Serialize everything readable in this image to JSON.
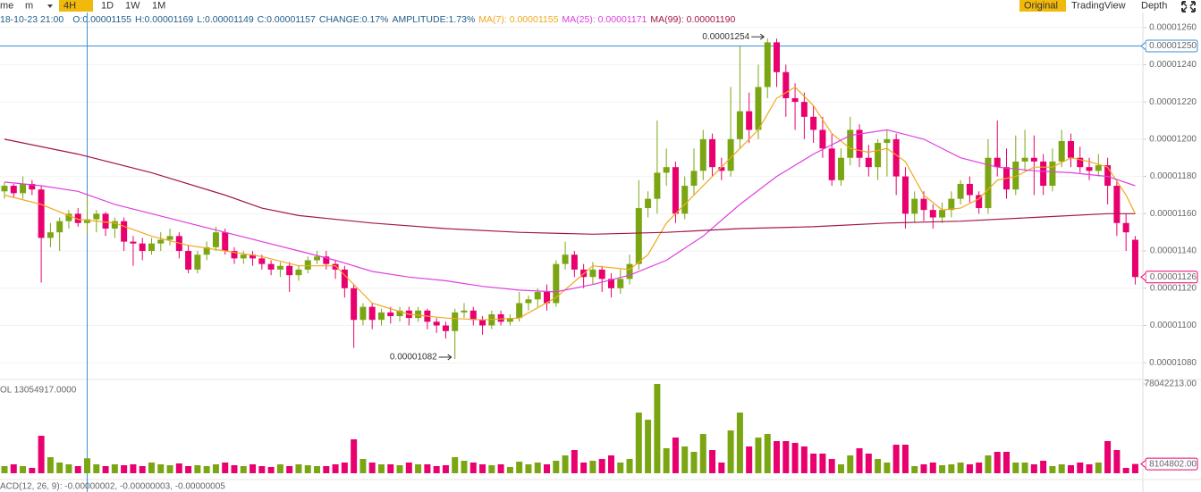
{
  "toolbar": {
    "intervals": [
      "me",
      "m",
      "4H",
      "1D",
      "1W",
      "1M"
    ],
    "active_interval": 2,
    "views": [
      "Original",
      "TradingView",
      "Depth"
    ],
    "active_view": 0
  },
  "chart_data": {
    "type": "candlestick",
    "info": {
      "date": "18-10-23 21:00",
      "fields": [
        "O:0.00001155",
        "H:0.00001169",
        "L:0.00001149",
        "C:0.00001157",
        "CHANGE:0.17%",
        "AMPLITUDE:1.73%"
      ]
    },
    "ylim": [
      1.071e-05,
      1.268e-05
    ],
    "yticks": [
      {
        "value": 1.08e-05,
        "label": "0.00001080"
      },
      {
        "value": 1.1e-05,
        "label": "0.00001100"
      },
      {
        "value": 1.12e-05,
        "label": "0.00001120"
      },
      {
        "value": 1.14e-05,
        "label": "0.00001140"
      },
      {
        "value": 1.16e-05,
        "label": "0.00001160"
      },
      {
        "value": 1.18e-05,
        "label": "0.00001180"
      },
      {
        "value": 1.2e-05,
        "label": "0.00001200"
      },
      {
        "value": 1.22e-05,
        "label": "0.00001220"
      },
      {
        "value": 1.24e-05,
        "label": "0.00001240"
      },
      {
        "value": 1.26e-05,
        "label": "0.00001260"
      }
    ],
    "grid": true,
    "up_color": "#7ba614",
    "down_color": "#e8006e",
    "candles": [
      [
        1.172e-05,
        1.177e-05,
        1.168e-05,
        1.175e-05
      ],
      [
        1.175e-05,
        1.176e-05,
        1.169e-05,
        1.171e-05
      ],
      [
        1.171e-05,
        1.18e-05,
        1.168e-05,
        1.176e-05
      ],
      [
        1.176e-05,
        1.178e-05,
        1.17e-05,
        1.173e-05
      ],
      [
        1.173e-05,
        1.175e-05,
        1.123e-05,
        1.147e-05
      ],
      [
        1.147e-05,
        1.155e-05,
        1.142e-05,
        1.15e-05
      ],
      [
        1.15e-05,
        1.158e-05,
        1.14e-05,
        1.156e-05
      ],
      [
        1.156e-05,
        1.162e-05,
        1.152e-05,
        1.16e-05
      ],
      [
        1.16e-05,
        1.163e-05,
        1.153e-05,
        1.155e-05
      ],
      [
        1.155e-05,
        1.169e-05,
        1.149e-05,
        1.157e-05
      ],
      [
        1.157e-05,
        1.162e-05,
        1.15e-05,
        1.16e-05
      ],
      [
        1.16e-05,
        1.161e-05,
        1.148e-05,
        1.152e-05
      ],
      [
        1.152e-05,
        1.158e-05,
        1.147e-05,
        1.156e-05
      ],
      [
        1.156e-05,
        1.158e-05,
        1.14e-05,
        1.145e-05
      ],
      [
        1.145e-05,
        1.148e-05,
        1.132e-05,
        1.144e-05
      ],
      [
        1.144e-05,
        1.147e-05,
        1.135e-05,
        1.14e-05
      ],
      [
        1.14e-05,
        1.147e-05,
        1.138e-05,
        1.144e-05
      ],
      [
        1.144e-05,
        1.15e-05,
        1.14e-05,
        1.146e-05
      ],
      [
        1.146e-05,
        1.152e-05,
        1.143e-05,
        1.148e-05
      ],
      [
        1.148e-05,
        1.15e-05,
        1.136e-05,
        1.14e-05
      ],
      [
        1.14e-05,
        1.143e-05,
        1.128e-05,
        1.13e-05
      ],
      [
        1.13e-05,
        1.14e-05,
        1.128e-05,
        1.138e-05
      ],
      [
        1.138e-05,
        1.145e-05,
        1.135e-05,
        1.142e-05
      ],
      [
        1.142e-05,
        1.153e-05,
        1.14e-05,
        1.15e-05
      ],
      [
        1.15e-05,
        1.152e-05,
        1.138e-05,
        1.14e-05
      ],
      [
        1.14e-05,
        1.142e-05,
        1.133e-05,
        1.136e-05
      ],
      [
        1.136e-05,
        1.14e-05,
        1.133e-05,
        1.138e-05
      ],
      [
        1.138e-05,
        1.14e-05,
        1.132e-05,
        1.136e-05
      ],
      [
        1.136e-05,
        1.138e-05,
        1.13e-05,
        1.133e-05
      ],
      [
        1.133e-05,
        1.135e-05,
        1.127e-05,
        1.13e-05
      ],
      [
        1.13e-05,
        1.134e-05,
        1.126e-05,
        1.132e-05
      ],
      [
        1.132e-05,
        1.134e-05,
        1.118e-05,
        1.127e-05
      ],
      [
        1.127e-05,
        1.132e-05,
        1.124e-05,
        1.13e-05
      ],
      [
        1.13e-05,
        1.137e-05,
        1.128e-05,
        1.135e-05
      ],
      [
        1.135e-05,
        1.14e-05,
        1.133e-05,
        1.137e-05
      ],
      [
        1.137e-05,
        1.14e-05,
        1.13e-05,
        1.133e-05
      ],
      [
        1.133e-05,
        1.135e-05,
        1.125e-05,
        1.13e-05
      ],
      [
        1.13e-05,
        1.132e-05,
        1.115e-05,
        1.12e-05
      ],
      [
        1.12e-05,
        1.122e-05,
        1.088e-05,
        1.103e-05
      ],
      [
        1.103e-05,
        1.112e-05,
        1.1e-05,
        1.11e-05
      ],
      [
        1.11e-05,
        1.112e-05,
        1.098e-05,
        1.103e-05
      ],
      [
        1.103e-05,
        1.109e-05,
        1.1e-05,
        1.107e-05
      ],
      [
        1.107e-05,
        1.11e-05,
        1.101e-05,
        1.105e-05
      ],
      [
        1.105e-05,
        1.11e-05,
        1.102e-05,
        1.108e-05
      ],
      [
        1.108e-05,
        1.11e-05,
        1.1e-05,
        1.104e-05
      ],
      [
        1.104e-05,
        1.11e-05,
        1.102e-05,
        1.108e-05
      ],
      [
        1.108e-05,
        1.109e-05,
        1.098e-05,
        1.102e-05
      ],
      [
        1.102e-05,
        1.104e-05,
        1.096e-05,
        1.1e-05
      ],
      [
        1.1e-05,
        1.102e-05,
        1.093e-05,
        1.097e-05
      ],
      [
        1.097e-05,
        1.109e-05,
        1.082e-05,
        1.107e-05
      ],
      [
        1.107e-05,
        1.112e-05,
        1.104e-05,
        1.108e-05
      ],
      [
        1.108e-05,
        1.11e-05,
        1.1e-05,
        1.103e-05
      ],
      [
        1.103e-05,
        1.105e-05,
        1.095e-05,
        1.1e-05
      ],
      [
        1.1e-05,
        1.108e-05,
        1.098e-05,
        1.106e-05
      ],
      [
        1.106e-05,
        1.108e-05,
        1.1e-05,
        1.102e-05
      ],
      [
        1.102e-05,
        1.106e-05,
        1.1e-05,
        1.104e-05
      ],
      [
        1.104e-05,
        1.118e-05,
        1.102e-05,
        1.112e-05
      ],
      [
        1.112e-05,
        1.116e-05,
        1.108e-05,
        1.114e-05
      ],
      [
        1.114e-05,
        1.12e-05,
        1.11e-05,
        1.118e-05
      ],
      [
        1.118e-05,
        1.122e-05,
        1.108e-05,
        1.112e-05
      ],
      [
        1.112e-05,
        1.135e-05,
        1.11e-05,
        1.133e-05
      ],
      [
        1.133e-05,
        1.145e-05,
        1.13e-05,
        1.138e-05
      ],
      [
        1.138e-05,
        1.14e-05,
        1.126e-05,
        1.13e-05
      ],
      [
        1.13e-05,
        1.133e-05,
        1.12e-05,
        1.126e-05
      ],
      [
        1.126e-05,
        1.134e-05,
        1.122e-05,
        1.13e-05
      ],
      [
        1.13e-05,
        1.132e-05,
        1.118e-05,
        1.125e-05
      ],
      [
        1.125e-05,
        1.128e-05,
        1.115e-05,
        1.12e-05
      ],
      [
        1.12e-05,
        1.13e-05,
        1.117e-05,
        1.125e-05
      ],
      [
        1.125e-05,
        1.138e-05,
        1.122e-05,
        1.133e-05
      ],
      [
        1.133e-05,
        1.178e-05,
        1.13e-05,
        1.163e-05
      ],
      [
        1.163e-05,
        1.172e-05,
        1.158e-05,
        1.168e-05
      ],
      [
        1.168e-05,
        1.21e-05,
        1.16e-05,
        1.182e-05
      ],
      [
        1.182e-05,
        1.195e-05,
        1.175e-05,
        1.185e-05
      ],
      [
        1.185e-05,
        1.188e-05,
        1.155e-05,
        1.16e-05
      ],
      [
        1.16e-05,
        1.18e-05,
        1.157e-05,
        1.175e-05
      ],
      [
        1.175e-05,
        1.195e-05,
        1.17e-05,
        1.183e-05
      ],
      [
        1.183e-05,
        1.205e-05,
        1.178e-05,
        1.2e-05
      ],
      [
        1.2e-05,
        1.203e-05,
        1.18e-05,
        1.185e-05
      ],
      [
        1.185e-05,
        1.19e-05,
        1.178e-05,
        1.183e-05
      ],
      [
        1.183e-05,
        1.228e-05,
        1.18e-05,
        1.2e-05
      ],
      [
        1.2e-05,
        1.25e-05,
        1.195e-05,
        1.215e-05
      ],
      [
        1.215e-05,
        1.225e-05,
        1.198e-05,
        1.205e-05
      ],
      [
        1.205e-05,
        1.24e-05,
        1.2e-05,
        1.228e-05
      ],
      [
        1.228e-05,
        1.254e-05,
        1.222e-05,
        1.252e-05
      ],
      [
        1.252e-05,
        1.254e-05,
        1.228e-05,
        1.236e-05
      ],
      [
        1.236e-05,
        1.24e-05,
        1.212e-05,
        1.222e-05
      ],
      [
        1.222e-05,
        1.23e-05,
        1.205e-05,
        1.22e-05
      ],
      [
        1.22e-05,
        1.225e-05,
        1.2e-05,
        1.212e-05
      ],
      [
        1.212e-05,
        1.218e-05,
        1.198e-05,
        1.205e-05
      ],
      [
        1.205e-05,
        1.212e-05,
        1.19e-05,
        1.195e-05
      ],
      [
        1.195e-05,
        1.203e-05,
        1.175e-05,
        1.178e-05
      ],
      [
        1.178e-05,
        1.195e-05,
        1.175e-05,
        1.19e-05
      ],
      [
        1.19e-05,
        1.212e-05,
        1.186e-05,
        1.205e-05
      ],
      [
        1.205e-05,
        1.208e-05,
        1.185e-05,
        1.19e-05
      ],
      [
        1.19e-05,
        1.197e-05,
        1.18e-05,
        1.185e-05
      ],
      [
        1.185e-05,
        1.2e-05,
        1.178e-05,
        1.198e-05
      ],
      [
        1.198e-05,
        1.205e-05,
        1.18e-05,
        1.2e-05
      ],
      [
        1.2e-05,
        1.203e-05,
        1.17e-05,
        1.18e-05
      ],
      [
        1.18e-05,
        1.185e-05,
        1.152e-05,
        1.16e-05
      ],
      [
        1.16e-05,
        1.172e-05,
        1.155e-05,
        1.168e-05
      ],
      [
        1.168e-05,
        1.172e-05,
        1.156e-05,
        1.162e-05
      ],
      [
        1.162e-05,
        1.165e-05,
        1.152e-05,
        1.158e-05
      ],
      [
        1.158e-05,
        1.166e-05,
        1.155e-05,
        1.162e-05
      ],
      [
        1.162e-05,
        1.172e-05,
        1.158e-05,
        1.168e-05
      ],
      [
        1.168e-05,
        1.178e-05,
        1.165e-05,
        1.176e-05
      ],
      [
        1.176e-05,
        1.18e-05,
        1.166e-05,
        1.17e-05
      ],
      [
        1.17e-05,
        1.172e-05,
        1.16e-05,
        1.163e-05
      ],
      [
        1.163e-05,
        1.2e-05,
        1.16e-05,
        1.19e-05
      ],
      [
        1.19e-05,
        1.21e-05,
        1.18e-05,
        1.185e-05
      ],
      [
        1.185e-05,
        1.195e-05,
        1.168e-05,
        1.173e-05
      ],
      [
        1.173e-05,
        1.202e-05,
        1.17e-05,
        1.188e-05
      ],
      [
        1.188e-05,
        1.205e-05,
        1.183e-05,
        1.19e-05
      ],
      [
        1.19e-05,
        1.202e-05,
        1.17e-05,
        1.188e-05
      ],
      [
        1.188e-05,
        1.192e-05,
        1.17e-05,
        1.175e-05
      ],
      [
        1.175e-05,
        1.195e-05,
        1.172e-05,
        1.188e-05
      ],
      [
        1.188e-05,
        1.205e-05,
        1.185e-05,
        1.199e-05
      ],
      [
        1.199e-05,
        1.203e-05,
        1.185e-05,
        1.19e-05
      ],
      [
        1.19e-05,
        1.196e-05,
        1.182e-05,
        1.185e-05
      ],
      [
        1.185e-05,
        1.19e-05,
        1.178e-05,
        1.183e-05
      ],
      [
        1.183e-05,
        1.192e-05,
        1.18e-05,
        1.186e-05
      ],
      [
        1.186e-05,
        1.19e-05,
        1.165e-05,
        1.175e-05
      ],
      [
        1.175e-05,
        1.178e-05,
        1.148e-05,
        1.155e-05
      ],
      [
        1.155e-05,
        1.16e-05,
        1.14e-05,
        1.15e-05
      ],
      [
        1.146e-05,
        1.148e-05,
        1.122e-05,
        1.126e-05
      ]
    ],
    "series": [
      {
        "name": "MA(7): 0.00001155",
        "color": "#f0a81c",
        "x": [
          0,
          4,
          8,
          12,
          16,
          20,
          24,
          28,
          32,
          36,
          40,
          44,
          48,
          52,
          56,
          60,
          64,
          68,
          70,
          72,
          74,
          76,
          78,
          80,
          82,
          84,
          86,
          88,
          90,
          92,
          94,
          96,
          98,
          100,
          102,
          104,
          106,
          108,
          110,
          112,
          114,
          116,
          118,
          120,
          122,
          123
        ],
        "values": [
          1.17e-05,
          1.165e-05,
          1.157e-05,
          1.155e-05,
          1.148e-05,
          1.143e-05,
          1.14e-05,
          1.137e-05,
          1.132e-05,
          1.132e-05,
          1.112e-05,
          1.106e-05,
          1.104e-05,
          1.103e-05,
          1.104e-05,
          1.115e-05,
          1.132e-05,
          1.13e-05,
          1.138e-05,
          1.155e-05,
          1.165e-05,
          1.175e-05,
          1.185e-05,
          1.195e-05,
          1.205e-05,
          1.222e-05,
          1.228e-05,
          1.218e-05,
          1.203e-05,
          1.195e-05,
          1.193e-05,
          1.195e-05,
          1.188e-05,
          1.17e-05,
          1.162e-05,
          1.163e-05,
          1.168e-05,
          1.178e-05,
          1.18e-05,
          1.185e-05,
          1.185e-05,
          1.19e-05,
          1.188e-05,
          1.185e-05,
          1.17e-05,
          1.16e-05
        ]
      },
      {
        "name": "MA(25): 0.00001171",
        "color": "#e03ee0",
        "x": [
          0,
          4,
          8,
          12,
          16,
          20,
          24,
          28,
          32,
          36,
          40,
          44,
          48,
          52,
          56,
          60,
          64,
          68,
          72,
          76,
          80,
          84,
          88,
          92,
          96,
          100,
          104,
          108,
          112,
          116,
          120,
          123
        ],
        "values": [
          1.177e-05,
          1.175e-05,
          1.172e-05,
          1.165e-05,
          1.16e-05,
          1.155e-05,
          1.15e-05,
          1.145e-05,
          1.14e-05,
          1.135e-05,
          1.129e-05,
          1.126e-05,
          1.124e-05,
          1.121e-05,
          1.119e-05,
          1.118e-05,
          1.122e-05,
          1.127e-05,
          1.135e-05,
          1.148e-05,
          1.165e-05,
          1.18e-05,
          1.192e-05,
          1.202e-05,
          1.205e-05,
          1.2e-05,
          1.19e-05,
          1.185e-05,
          1.183e-05,
          1.182e-05,
          1.18e-05,
          1.175e-05
        ]
      },
      {
        "name": "MA(99): 0.00001190",
        "color": "#a3164c",
        "x": [
          0,
          8,
          16,
          24,
          28,
          32,
          40,
          48,
          56,
          64,
          72,
          80,
          88,
          96,
          104,
          112,
          120,
          123
        ],
        "values": [
          1.2e-05,
          1.192e-05,
          1.182e-05,
          1.17e-05,
          1.163e-05,
          1.159e-05,
          1.155e-05,
          1.152e-05,
          1.15e-05,
          1.149e-05,
          1.15e-05,
          1.152e-05,
          1.153e-05,
          1.155e-05,
          1.156e-05,
          1.158e-05,
          1.16e-05,
          1.16e-05
        ]
      }
    ],
    "crosshair": {
      "candle": 9,
      "color": "#3a8fd6",
      "price": {
        "value": 1.25e-05,
        "label": "0.00001250"
      }
    },
    "last_price": {
      "value": 1.126e-05,
      "label": "0.00001126"
    },
    "annotations": [
      {
        "candle": 83,
        "value": 1.254e-05,
        "label": "0.00001254"
      },
      {
        "candle": 49,
        "value": 1.082e-05,
        "label": "0.00001082"
      }
    ],
    "volume": {
      "readout": "OL 13054917.0000",
      "values": [
        6240000,
        7800000,
        6240000,
        4680000,
        32760000,
        14040000,
        9360000,
        7800000,
        6240000,
        13054917,
        7800000,
        6240000,
        7800000,
        7020000,
        7800000,
        6240000,
        9360000,
        7800000,
        7020000,
        8580000,
        6240000,
        7020000,
        6240000,
        7800000,
        9360000,
        7020000,
        6240000,
        7800000,
        6240000,
        5460000,
        7800000,
        6240000,
        7800000,
        7020000,
        6240000,
        6240000,
        7800000,
        9360000,
        29640000,
        12480000,
        9360000,
        7800000,
        7800000,
        7020000,
        9360000,
        7800000,
        7800000,
        6240000,
        7020000,
        14040000,
        10920000,
        9360000,
        7800000,
        7020000,
        7800000,
        5460000,
        10140000,
        7800000,
        9360000,
        7800000,
        10920000,
        15600000,
        20280000,
        9360000,
        10920000,
        12480000,
        15600000,
        9360000,
        12480000,
        53040000,
        46800000,
        78042213,
        21840000,
        31200000,
        23400000,
        18720000,
        34320000,
        20280000,
        9360000,
        37440000,
        53040000,
        23400000,
        31200000,
        34320000,
        28080000,
        28080000,
        26520000,
        23400000,
        17160000,
        17160000,
        12480000,
        7800000,
        15600000,
        21840000,
        17160000,
        12480000,
        9360000,
        24960000,
        24960000,
        6240000,
        7800000,
        9360000,
        7020000,
        7800000,
        9360000,
        7800000,
        9360000,
        15600000,
        18720000,
        18720000,
        9360000,
        9360000,
        7800000,
        10920000,
        6240000,
        7800000,
        7020000,
        9360000,
        7800000,
        9360000,
        28080000,
        20280000,
        4680000,
        8104802
      ],
      "ylim": [
        0,
        78042213
      ],
      "yticks": [
        {
          "value": 78042213,
          "label": "78042213.00"
        }
      ],
      "last": {
        "value": 8104802,
        "label": "8104802.00"
      }
    },
    "macd": {
      "readout": "ACD(12, 26, 9): -0.00000002, -0.00000003, -0.00000005"
    }
  }
}
